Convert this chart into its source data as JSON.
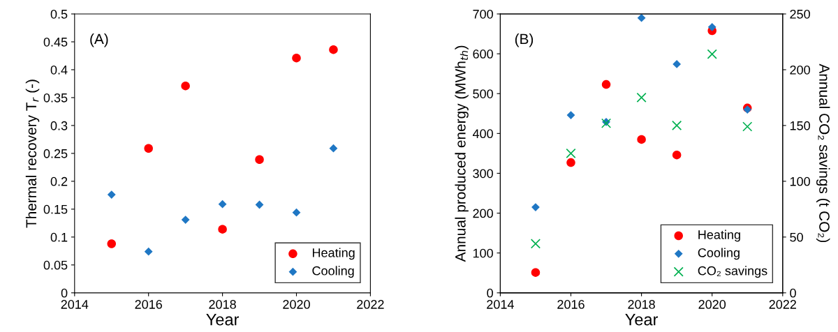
{
  "chart_data": [
    {
      "type": "scatter",
      "xlabel": "Year",
      "ylabel": "Thermal recovery T$_{r}$ (-)",
      "annotations": [
        "(A)"
      ],
      "x": [
        2015,
        2016,
        2017,
        2018,
        2019,
        2020,
        2021
      ],
      "xlim": [
        2014,
        2022
      ],
      "xticks": [
        2014,
        2016,
        2018,
        2020,
        2022
      ],
      "ylim": [
        0,
        0.5
      ],
      "yticks": [
        0,
        0.05,
        0.1,
        0.15,
        0.2,
        0.25,
        0.3,
        0.35,
        0.4,
        0.45,
        0.5
      ],
      "legend": "bottom right",
      "series": [
        {
          "name": "Heating",
          "color": "#ff0000",
          "marker": "circle",
          "values": [
            0.088,
            0.259,
            0.371,
            0.114,
            0.239,
            0.421,
            0.436
          ]
        },
        {
          "name": "Cooling",
          "color": "#1f77c4",
          "marker": "diamond",
          "values": [
            0.176,
            0.074,
            0.131,
            0.159,
            0.158,
            0.144,
            0.259
          ]
        }
      ]
    },
    {
      "type": "scatter",
      "xlabel": "Year",
      "ylabel": "Annual produced energy (MWh$_{th}$)",
      "y2label": "Annual CO₂ savings (t CO₂)",
      "annotations": [
        "(B)"
      ],
      "x": [
        2015,
        2016,
        2017,
        2018,
        2019,
        2020,
        2021
      ],
      "xlim": [
        2014,
        2022
      ],
      "xticks": [
        2014,
        2016,
        2018,
        2020,
        2022
      ],
      "ylim": [
        0,
        700
      ],
      "yticks": [
        0,
        100,
        200,
        300,
        400,
        500,
        600,
        700
      ],
      "y2lim": [
        0,
        250
      ],
      "y2ticks": [
        0,
        50,
        100,
        150,
        200,
        250
      ],
      "legend": "bottom right",
      "series": [
        {
          "name": "Heating",
          "color": "#ff0000",
          "marker": "circle",
          "values": [
            51,
            327,
            523,
            385,
            346,
            658,
            464
          ]
        },
        {
          "name": "Cooling",
          "color": "#1f77c4",
          "marker": "diamond",
          "values": [
            215,
            446,
            429,
            690,
            574,
            667,
            460
          ]
        },
        {
          "name": "CO₂ savings",
          "color": "#00b050",
          "marker": "cross",
          "axis": "y2",
          "values": [
            44,
            125,
            152,
            175,
            150,
            214,
            149
          ]
        }
      ]
    }
  ]
}
